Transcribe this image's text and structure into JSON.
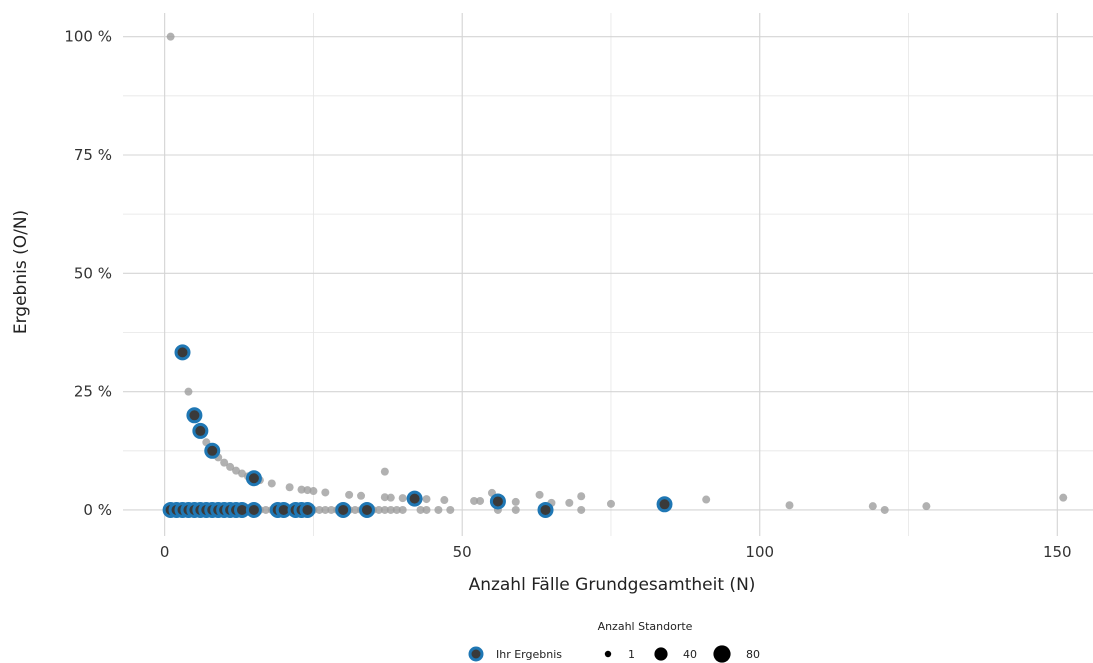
{
  "chart_data": {
    "type": "scatter",
    "xlabel": "Anzahl Fälle Grundgesamtheit (N)",
    "ylabel": "Ergebnis (O/N)",
    "xlim": [
      -7,
      156
    ],
    "ylim": [
      -5.5,
      105
    ],
    "x_ticks": [
      0,
      50,
      100,
      150
    ],
    "y_ticks": [
      0,
      25,
      50,
      75,
      100
    ],
    "y_tick_labels": [
      "0 %",
      "25 %",
      "50 %",
      "75 %",
      "100 %"
    ],
    "grid": true,
    "legend_position": "bottom",
    "colors": {
      "other_points": "#9e9e9e",
      "highlight_ring": "#1f77b4",
      "highlight_fill": "#3a3a3a"
    },
    "legend": {
      "highlight_label": "Ihr Ergebnis",
      "size_title": "Anzahl Standorte",
      "size_labels": [
        "1",
        "40",
        "80"
      ]
    },
    "series": [
      {
        "name": "Ihr Ergebnis",
        "points": [
          {
            "x": 3,
            "y": 33.3
          },
          {
            "x": 5,
            "y": 20.0
          },
          {
            "x": 6,
            "y": 16.7
          },
          {
            "x": 8,
            "y": 12.5
          },
          {
            "x": 15,
            "y": 6.7
          },
          {
            "x": 42,
            "y": 2.4
          },
          {
            "x": 56,
            "y": 1.8
          },
          {
            "x": 84,
            "y": 1.2
          },
          {
            "x": 1,
            "y": 0
          },
          {
            "x": 2,
            "y": 0
          },
          {
            "x": 3,
            "y": 0
          },
          {
            "x": 4,
            "y": 0
          },
          {
            "x": 5,
            "y": 0
          },
          {
            "x": 6,
            "y": 0
          },
          {
            "x": 7,
            "y": 0
          },
          {
            "x": 8,
            "y": 0
          },
          {
            "x": 9,
            "y": 0
          },
          {
            "x": 10,
            "y": 0
          },
          {
            "x": 11,
            "y": 0
          },
          {
            "x": 12,
            "y": 0
          },
          {
            "x": 13,
            "y": 0
          },
          {
            "x": 15,
            "y": 0
          },
          {
            "x": 19,
            "y": 0
          },
          {
            "x": 20,
            "y": 0
          },
          {
            "x": 22,
            "y": 0
          },
          {
            "x": 23,
            "y": 0
          },
          {
            "x": 24,
            "y": 0
          },
          {
            "x": 30,
            "y": 0
          },
          {
            "x": 34,
            "y": 0
          },
          {
            "x": 64,
            "y": 0
          }
        ]
      },
      {
        "points": [
          {
            "x": 1,
            "y": 100
          },
          {
            "x": 4,
            "y": 25
          },
          {
            "x": 7,
            "y": 14.3
          },
          {
            "x": 9,
            "y": 11.1
          },
          {
            "x": 10,
            "y": 10
          },
          {
            "x": 11,
            "y": 9.1
          },
          {
            "x": 12,
            "y": 8.3
          },
          {
            "x": 13,
            "y": 7.7
          },
          {
            "x": 14,
            "y": 7.1
          },
          {
            "x": 16,
            "y": 6.3
          },
          {
            "x": 18,
            "y": 5.6
          },
          {
            "x": 21,
            "y": 4.8
          },
          {
            "x": 23,
            "y": 4.3
          },
          {
            "x": 24,
            "y": 4.2
          },
          {
            "x": 25,
            "y": 4.0
          },
          {
            "x": 27,
            "y": 3.7
          },
          {
            "x": 31,
            "y": 3.2
          },
          {
            "x": 33,
            "y": 3.0
          },
          {
            "x": 37,
            "y": 8.1
          },
          {
            "x": 37,
            "y": 2.7
          },
          {
            "x": 38,
            "y": 2.6
          },
          {
            "x": 40,
            "y": 2.5
          },
          {
            "x": 44,
            "y": 2.3
          },
          {
            "x": 47,
            "y": 2.1
          },
          {
            "x": 52,
            "y": 1.9
          },
          {
            "x": 53,
            "y": 1.9
          },
          {
            "x": 55,
            "y": 3.6
          },
          {
            "x": 56,
            "y": 0
          },
          {
            "x": 59,
            "y": 1.7
          },
          {
            "x": 63,
            "y": 3.2
          },
          {
            "x": 65,
            "y": 1.5
          },
          {
            "x": 68,
            "y": 1.5
          },
          {
            "x": 70,
            "y": 2.9
          },
          {
            "x": 75,
            "y": 1.3
          },
          {
            "x": 91,
            "y": 2.2
          },
          {
            "x": 105,
            "y": 1.0
          },
          {
            "x": 119,
            "y": 0.8
          },
          {
            "x": 121,
            "y": 0
          },
          {
            "x": 128,
            "y": 0.8
          },
          {
            "x": 151,
            "y": 2.6
          },
          {
            "x": 14,
            "y": 0
          },
          {
            "x": 16,
            "y": 0
          },
          {
            "x": 17,
            "y": 0
          },
          {
            "x": 18,
            "y": 0
          },
          {
            "x": 21,
            "y": 0
          },
          {
            "x": 25,
            "y": 0
          },
          {
            "x": 26,
            "y": 0
          },
          {
            "x": 27,
            "y": 0
          },
          {
            "x": 28,
            "y": 0
          },
          {
            "x": 29,
            "y": 0
          },
          {
            "x": 31,
            "y": 0
          },
          {
            "x": 32,
            "y": 0
          },
          {
            "x": 33,
            "y": 0
          },
          {
            "x": 35,
            "y": 0
          },
          {
            "x": 36,
            "y": 0
          },
          {
            "x": 37,
            "y": 0
          },
          {
            "x": 38,
            "y": 0
          },
          {
            "x": 39,
            "y": 0
          },
          {
            "x": 40,
            "y": 0
          },
          {
            "x": 43,
            "y": 0
          },
          {
            "x": 44,
            "y": 0
          },
          {
            "x": 46,
            "y": 0
          },
          {
            "x": 48,
            "y": 0
          },
          {
            "x": 59,
            "y": 0
          },
          {
            "x": 70,
            "y": 0
          }
        ]
      }
    ]
  }
}
